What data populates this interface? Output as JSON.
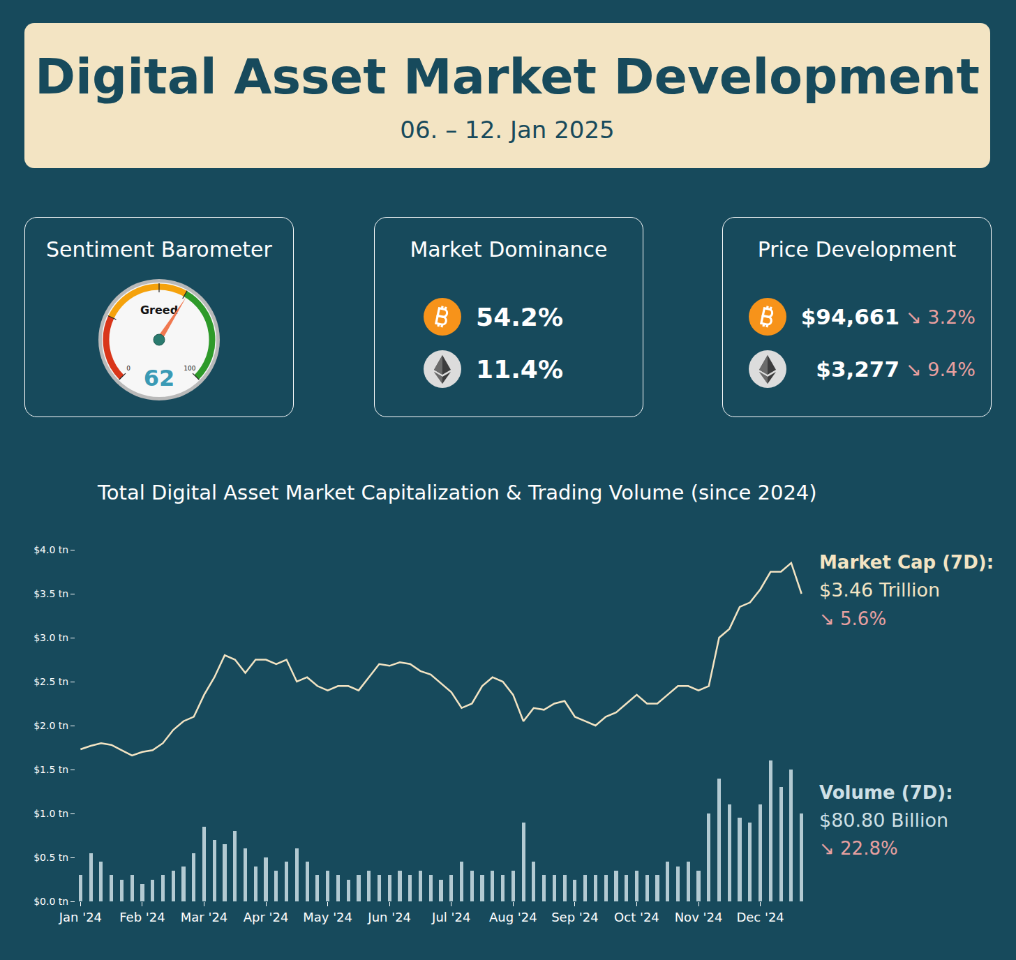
{
  "header": {
    "title": "Digital Asset Market Development",
    "subtitle": "06. – 12. Jan 2025"
  },
  "sentiment": {
    "title": "Sentiment Barometer",
    "label": "Greed",
    "value": 62,
    "min": 0,
    "max": 100
  },
  "dominance": {
    "title": "Market Dominance",
    "items": [
      {
        "value": "54.2%",
        "color": "#f7931a"
      },
      {
        "value": "11.4%",
        "color": "#dcdcdc"
      }
    ]
  },
  "price": {
    "title": "Price Development",
    "items": [
      {
        "price": "$94,661",
        "change": "↘ 3.2%",
        "color": "#f7931a"
      },
      {
        "price": "$3,277",
        "change": "↘ 9.4%",
        "color": "#dcdcdc"
      }
    ]
  },
  "chart_data": {
    "type": "line",
    "title": "Total Digital Asset Market Capitalization & Trading Volume (since 2024)",
    "categories": [
      "Jan '24",
      null,
      null,
      null,
      null,
      null,
      "Feb '24",
      null,
      null,
      null,
      null,
      null,
      "Mar '24",
      null,
      null,
      null,
      null,
      null,
      "Apr '24",
      null,
      null,
      null,
      null,
      null,
      "May '24",
      null,
      null,
      null,
      null,
      null,
      "Jun '24",
      null,
      null,
      null,
      null,
      null,
      "Jul '24",
      null,
      null,
      null,
      null,
      null,
      "Aug '24",
      null,
      null,
      null,
      null,
      null,
      "Sep '24",
      null,
      null,
      null,
      null,
      null,
      "Oct '24",
      null,
      null,
      null,
      null,
      null,
      "Nov '24",
      null,
      null,
      null,
      null,
      null,
      "Dec '24",
      null,
      null,
      null,
      null
    ],
    "series": [
      {
        "type": "line",
        "color": "#f3e4c3",
        "values": [
          1.73,
          1.77,
          1.8,
          1.78,
          1.72,
          1.66,
          1.7,
          1.72,
          1.8,
          1.95,
          2.05,
          2.1,
          2.35,
          2.55,
          2.8,
          2.75,
          2.6,
          2.75,
          2.75,
          2.7,
          2.75,
          2.5,
          2.55,
          2.45,
          2.4,
          2.45,
          2.45,
          2.4,
          2.55,
          2.7,
          2.68,
          2.72,
          2.7,
          2.62,
          2.58,
          2.48,
          2.38,
          2.2,
          2.25,
          2.45,
          2.55,
          2.5,
          2.35,
          2.05,
          2.2,
          2.18,
          2.25,
          2.28,
          2.1,
          2.05,
          2.0,
          2.1,
          2.15,
          2.25,
          2.35,
          2.25,
          2.25,
          2.35,
          2.45,
          2.45,
          2.4,
          2.45,
          3.0,
          3.1,
          3.35,
          3.4,
          3.55,
          3.75,
          3.75,
          3.85,
          3.5
        ]
      },
      {
        "type": "bar",
        "color": "#cfe0e6",
        "values": [
          0.3,
          0.55,
          0.45,
          0.3,
          0.25,
          0.3,
          0.2,
          0.25,
          0.3,
          0.35,
          0.4,
          0.55,
          0.85,
          0.7,
          0.65,
          0.8,
          0.6,
          0.4,
          0.5,
          0.35,
          0.45,
          0.6,
          0.45,
          0.3,
          0.35,
          0.3,
          0.25,
          0.3,
          0.35,
          0.3,
          0.3,
          0.35,
          0.3,
          0.35,
          0.3,
          0.25,
          0.3,
          0.45,
          0.35,
          0.3,
          0.35,
          0.3,
          0.35,
          0.9,
          0.45,
          0.3,
          0.3,
          0.3,
          0.25,
          0.3,
          0.3,
          0.3,
          0.35,
          0.3,
          0.35,
          0.3,
          0.3,
          0.45,
          0.4,
          0.45,
          0.35,
          1.0,
          1.4,
          1.1,
          0.95,
          0.9,
          1.1,
          1.6,
          1.3,
          1.5,
          1.0
        ]
      }
    ],
    "ylim": [
      0,
      4
    ],
    "yticks": [
      {
        "value": 0,
        "label": "$0.0 tn"
      },
      {
        "value": 0.5,
        "label": "$0.5 tn"
      },
      {
        "value": 1,
        "label": "$1.0 tn"
      },
      {
        "value": 1.5,
        "label": "$1.5 tn"
      },
      {
        "value": 2,
        "label": "$2.0 tn"
      },
      {
        "value": 2.5,
        "label": "$2.5 tn"
      },
      {
        "value": 3,
        "label": "$3.0 tn"
      },
      {
        "value": 3.5,
        "label": "$3.5 tn"
      },
      {
        "value": 4,
        "label": "$4.0 tn"
      }
    ],
    "grid": false,
    "annotations": [
      {
        "title": "Market Cap (7D):",
        "value": "$3.46 Trillion",
        "change": "↘ 5.6%"
      },
      {
        "title": "Volume (7D):",
        "value": "$80.80 Billion",
        "change": "↘ 22.8%"
      }
    ]
  }
}
